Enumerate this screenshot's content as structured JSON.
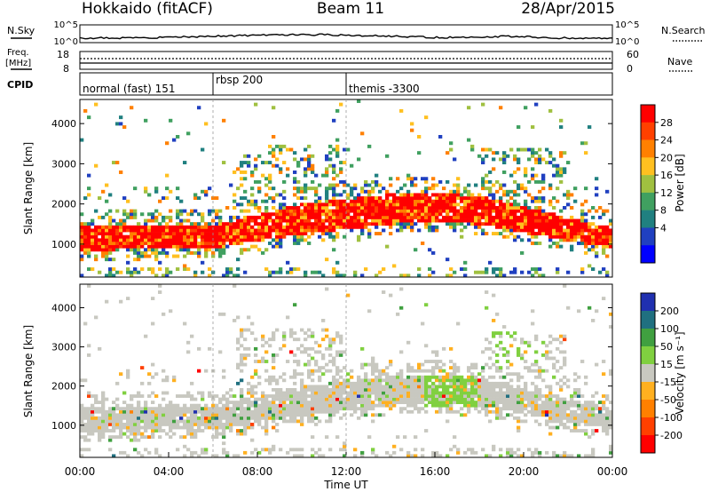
{
  "header": {
    "station": "Hokkaido (fitACF)",
    "beam": "Beam 11",
    "date": "28/Apr/2015"
  },
  "noise_panel": {
    "left_label": "N.Sky",
    "right_label": "N.Search",
    "y_ticks": [
      "10^5",
      "10^0"
    ]
  },
  "freq_panel": {
    "left_label_1": "Freq.",
    "left_label_2": "[MHz]",
    "left_ticks": [
      "18",
      "8"
    ],
    "right_label": "Nave",
    "right_ticks": [
      "60",
      "0"
    ]
  },
  "cpid_panel": {
    "label": "CPID",
    "segments": [
      {
        "label": "normal (fast) 151",
        "start_hour": 0,
        "end_hour": 6
      },
      {
        "label": "rbsp 200",
        "start_hour": 6,
        "end_hour": 12
      },
      {
        "label": "themis -3300",
        "start_hour": 12,
        "end_hour": 24
      }
    ]
  },
  "power_colorbar": {
    "title": "Power [dB]",
    "ticks": [
      "28",
      "24",
      "20",
      "16",
      "12",
      "8",
      "4"
    ],
    "colors": [
      "#ff0000",
      "#ff4000",
      "#ff8000",
      "#ffc020",
      "#a0c040",
      "#40a060",
      "#208080",
      "#2040c0",
      "#0000ff"
    ]
  },
  "velocity_colorbar": {
    "title": "Velocity [m s⁻¹]",
    "ticks": [
      "200",
      "100",
      "50",
      "15",
      "-15",
      "-50",
      "-100",
      "-200"
    ],
    "colors": [
      "#2030b0",
      "#207080",
      "#40a040",
      "#80d040",
      "#c8c8c0",
      "#ffb020",
      "#ff8000",
      "#ff4000",
      "#ff0000"
    ]
  },
  "chart_data": {
    "type": "heatmap",
    "xlabel": "Time UT",
    "ylabel": "Slant Range [km]",
    "x_ticks": [
      "00:00",
      "04:00",
      "08:00",
      "12:00",
      "16:00",
      "20:00",
      "00:00"
    ],
    "x_range_hours": [
      0,
      24
    ],
    "y_range_km": [
      180,
      4600
    ],
    "y_ticks": [
      1000,
      2000,
      3000,
      4000
    ],
    "power_panel": {
      "main_echo_band_km": [
        {
          "hour": 0,
          "lower": 850,
          "upper": 1450
        },
        {
          "hour": 6,
          "lower": 900,
          "upper": 1450
        },
        {
          "hour": 10,
          "lower": 1250,
          "upper": 2000
        },
        {
          "hour": 15,
          "lower": 1550,
          "upper": 2300
        },
        {
          "hour": 18,
          "lower": 1500,
          "upper": 2200
        },
        {
          "hour": 24,
          "lower": 900,
          "upper": 1400
        }
      ]
    },
    "velocity_panel": {
      "dominant_velocity_m_s": "-15 to 15"
    }
  }
}
